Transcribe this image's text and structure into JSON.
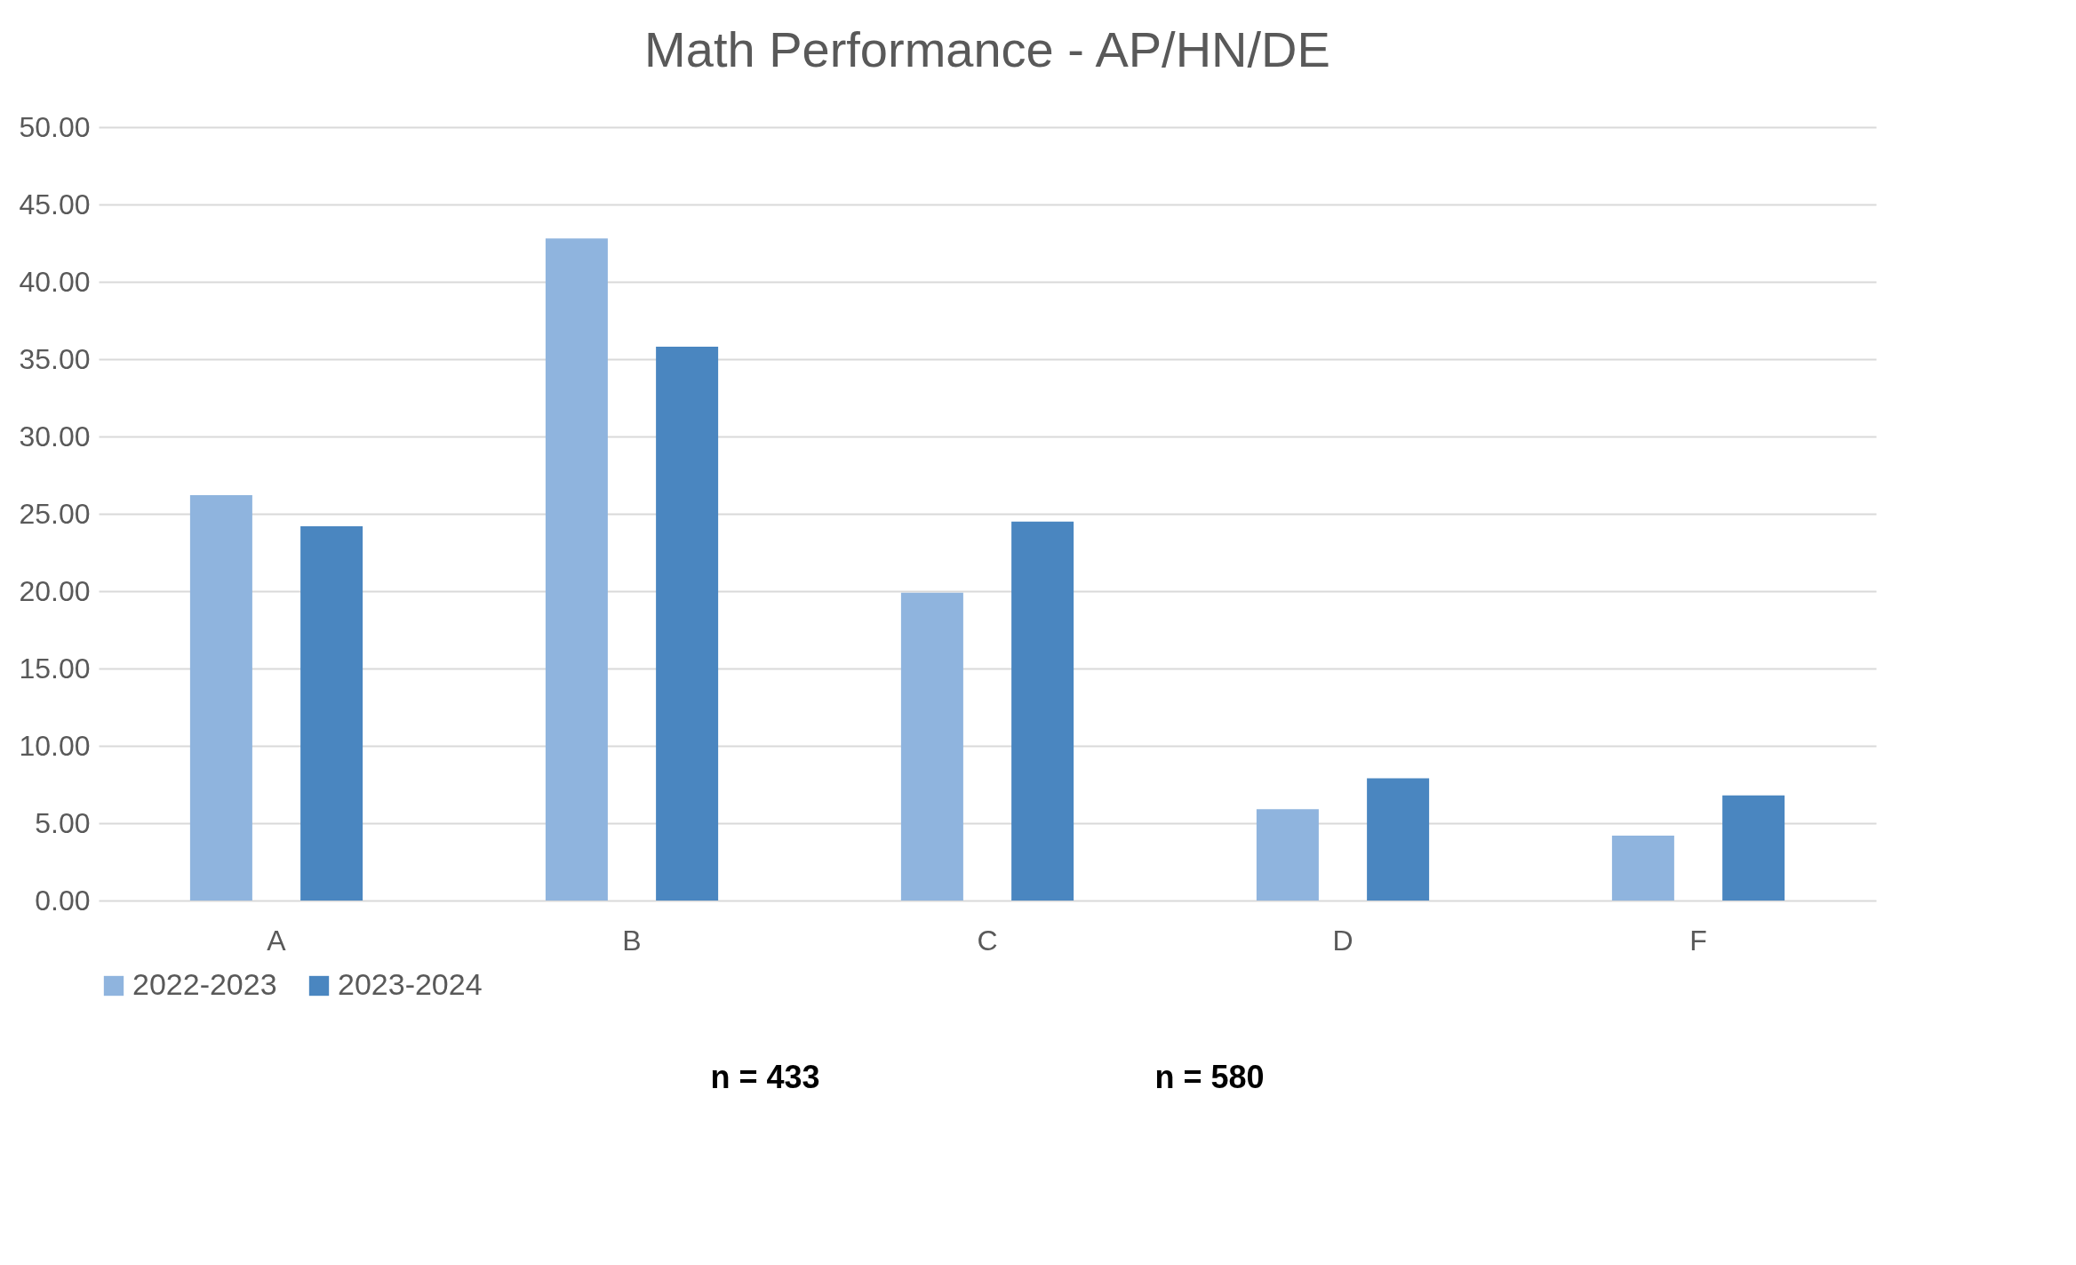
{
  "chart_data": {
    "type": "bar",
    "title": "Math Performance - AP/HN/DE",
    "categories": [
      "A",
      "B",
      "C",
      "D",
      "F"
    ],
    "series": [
      {
        "name": "2022-2023",
        "color": "#8fb4de",
        "values": [
          26.2,
          42.8,
          19.9,
          5.9,
          4.2
        ]
      },
      {
        "name": "2023-2024",
        "color": "#4a86c0",
        "values": [
          24.2,
          35.8,
          24.5,
          7.9,
          6.8
        ]
      }
    ],
    "ylim": [
      0,
      50
    ],
    "yticks": [
      {
        "value": 0,
        "label": "0.00"
      },
      {
        "value": 5,
        "label": "5.00"
      },
      {
        "value": 10,
        "label": "10.00"
      },
      {
        "value": 15,
        "label": "15.00"
      },
      {
        "value": 20,
        "label": "20.00"
      },
      {
        "value": 25,
        "label": "25.00"
      },
      {
        "value": 30,
        "label": "30.00"
      },
      {
        "value": 35,
        "label": "35.00"
      },
      {
        "value": 40,
        "label": "40.00"
      },
      {
        "value": 45,
        "label": "45.00"
      },
      {
        "value": 50,
        "label": "50.00"
      }
    ],
    "grid": "y",
    "legend": "bottom",
    "annotations": [
      "n = 433",
      "n = 580"
    ]
  }
}
